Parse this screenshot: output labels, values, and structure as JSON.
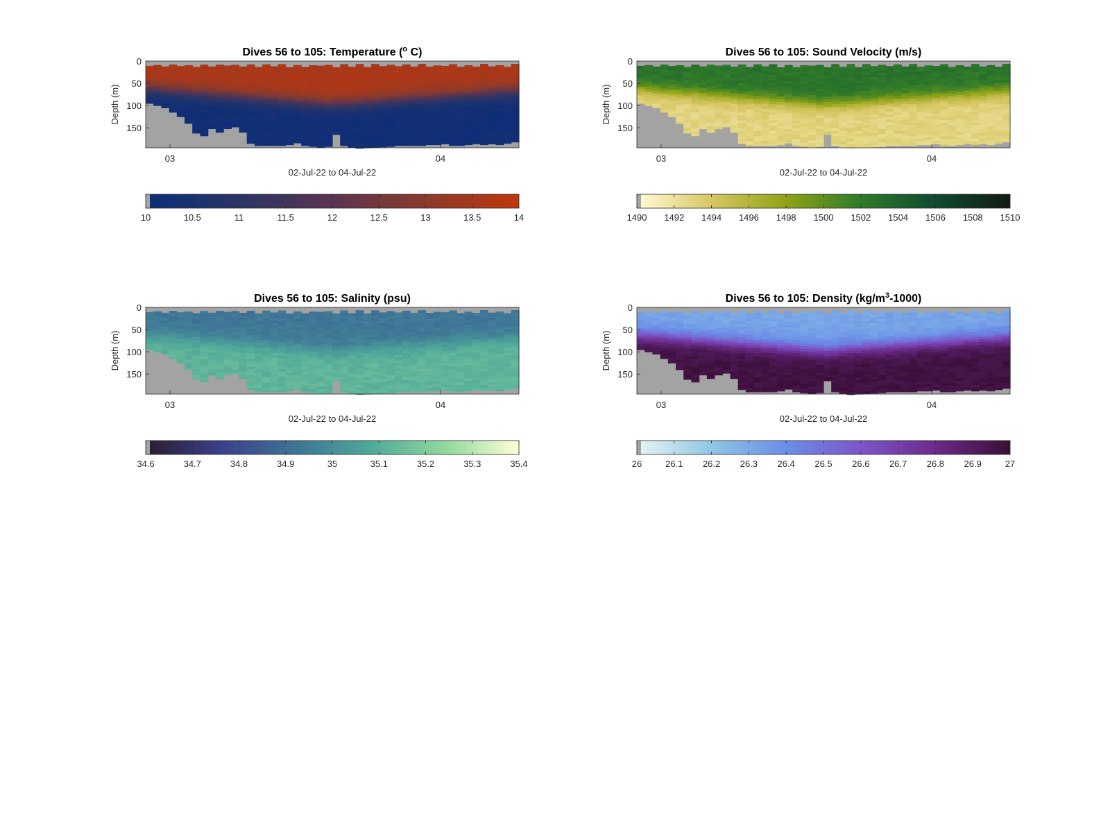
{
  "chart_data": [
    {
      "type": "heatmap",
      "title": "Dives 56 to 105: Temperature (",
      "title_sup": "o",
      "title_tail": " C)",
      "xlabel": "02-Jul-22 to 04-Jul-22",
      "ylabel": "Depth (m)",
      "x_ticks": [
        "03",
        "04"
      ],
      "y_ticks": [
        "0",
        "50",
        "100",
        "150"
      ],
      "ylim": [
        0,
        195
      ],
      "colorbar": {
        "range": [
          10,
          14
        ],
        "tick_labels": [
          "10",
          "10.5",
          "11",
          "11.5",
          "12",
          "12.5",
          "13",
          "13.5",
          "14"
        ],
        "colors": [
          "#0b2d7a",
          "#2a3566",
          "#5a3450",
          "#8b3a2c",
          "#c0360c"
        ]
      },
      "bottom_depth_m": [
        95,
        100,
        105,
        115,
        125,
        140,
        162,
        168,
        152,
        160,
        152,
        148,
        160,
        185,
        190,
        190,
        190,
        190,
        188,
        184,
        190,
        192,
        194,
        192,
        165,
        190,
        194,
        196,
        195,
        194,
        193,
        192,
        190,
        190,
        190,
        190,
        188,
        188,
        186,
        190,
        190,
        188,
        186,
        188,
        186,
        188,
        185,
        182
      ],
      "profile": {
        "surface": 13.6,
        "bottom": 10.2,
        "mld_start": 60,
        "mld_mid": 95,
        "mld_end": 65,
        "width": 35
      }
    },
    {
      "type": "heatmap",
      "title": "Dives 56 to 105: Sound Velocity (m/s)",
      "xlabel": "02-Jul-22 to 04-Jul-22",
      "ylabel": "Depth (m)",
      "x_ticks": [
        "03",
        "04"
      ],
      "y_ticks": [
        "0",
        "50",
        "100",
        "150"
      ],
      "ylim": [
        0,
        195
      ],
      "colorbar": {
        "range": [
          1490,
          1510
        ],
        "tick_labels": [
          "1490",
          "1492",
          "1494",
          "1496",
          "1498",
          "1500",
          "1502",
          "1504",
          "1506",
          "1508",
          "1510"
        ],
        "colors": [
          "#fffdd6",
          "#d8c663",
          "#8fa316",
          "#2f7a2a",
          "#0f4a2e",
          "#131a13"
        ]
      },
      "bottom_depth_m": [
        95,
        100,
        105,
        115,
        125,
        140,
        162,
        168,
        152,
        160,
        152,
        148,
        160,
        185,
        190,
        190,
        190,
        190,
        188,
        184,
        190,
        192,
        194,
        192,
        165,
        190,
        194,
        196,
        195,
        194,
        193,
        192,
        190,
        190,
        190,
        190,
        188,
        188,
        186,
        190,
        190,
        188,
        186,
        188,
        186,
        188,
        185,
        182
      ],
      "profile": {
        "surface": 1502.5,
        "bottom": 1493.0,
        "mld_start": 60,
        "mld_mid": 95,
        "mld_end": 65,
        "width": 35
      }
    },
    {
      "type": "heatmap",
      "title": "Dives 56 to 105: Salinity (psu)",
      "xlabel": "02-Jul-22 to 04-Jul-22",
      "ylabel": "Depth (m)",
      "x_ticks": [
        "03",
        "04"
      ],
      "y_ticks": [
        "0",
        "50",
        "100",
        "150"
      ],
      "ylim": [
        0,
        195
      ],
      "colorbar": {
        "range": [
          34.6,
          35.4
        ],
        "tick_labels": [
          "34.6",
          "34.7",
          "34.8",
          "34.9",
          "35",
          "35.1",
          "35.2",
          "35.3",
          "35.4"
        ],
        "colors": [
          "#2b1d2e",
          "#3b3f8c",
          "#3e7396",
          "#4fa89a",
          "#8fd89c",
          "#fefed6"
        ]
      },
      "bottom_depth_m": [
        95,
        100,
        105,
        115,
        125,
        140,
        162,
        168,
        152,
        160,
        152,
        148,
        160,
        185,
        190,
        190,
        190,
        190,
        188,
        184,
        190,
        192,
        194,
        192,
        165,
        190,
        194,
        196,
        195,
        194,
        193,
        192,
        190,
        190,
        190,
        190,
        188,
        188,
        186,
        190,
        190,
        188,
        186,
        188,
        186,
        188,
        185,
        182
      ],
      "profile": {
        "surface": 34.93,
        "bottom": 35.12,
        "mld_start": 60,
        "mld_mid": 95,
        "mld_end": 65,
        "width": 40
      }
    },
    {
      "type": "heatmap",
      "title": "Dives 56 to 105: Density (kg/m",
      "title_sup": "3",
      "title_tail": "-1000)",
      "xlabel": "02-Jul-22 to 04-Jul-22",
      "ylabel": "Depth (m)",
      "x_ticks": [
        "03",
        "04"
      ],
      "y_ticks": [
        "0",
        "50",
        "100",
        "150"
      ],
      "ylim": [
        0,
        195
      ],
      "colorbar": {
        "range": [
          26,
          27
        ],
        "tick_labels": [
          "26",
          "26.1",
          "26.2",
          "26.3",
          "26.4",
          "26.5",
          "26.6",
          "26.7",
          "26.8",
          "26.9",
          "27"
        ],
        "colors": [
          "#e8f4f4",
          "#8fc6e4",
          "#6a8ee8",
          "#7d55c8",
          "#6b2a8a",
          "#3a0e36"
        ]
      },
      "bottom_depth_m": [
        95,
        100,
        105,
        115,
        125,
        140,
        162,
        168,
        152,
        160,
        152,
        148,
        160,
        185,
        190,
        190,
        190,
        190,
        188,
        184,
        190,
        192,
        194,
        192,
        165,
        190,
        194,
        196,
        195,
        194,
        193,
        192,
        190,
        190,
        190,
        190,
        188,
        188,
        186,
        190,
        190,
        188,
        186,
        188,
        186,
        188,
        185,
        182
      ],
      "profile": {
        "surface": 26.32,
        "bottom": 26.97,
        "mld_start": 60,
        "mld_mid": 95,
        "mld_end": 65,
        "width": 40
      }
    }
  ]
}
